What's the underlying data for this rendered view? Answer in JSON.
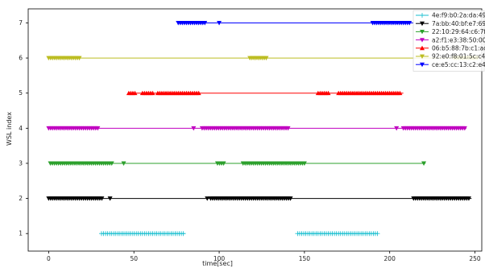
{
  "chart_data": {
    "type": "scatter",
    "xlabel": "time[sec]",
    "ylabel": "WSL index",
    "xlim": [
      -12,
      254
    ],
    "ylim": [
      0.5,
      7.4
    ],
    "xticks": [
      0,
      50,
      100,
      150,
      200,
      250
    ],
    "yticks": [
      1,
      2,
      3,
      4,
      5,
      6,
      7
    ],
    "grid": false,
    "legend_position": "top-right",
    "series": [
      {
        "name": "4e:f9:b0:2a:da:49",
        "color": "#17becf",
        "marker": "plus",
        "y": 1,
        "segments": [
          [
            31,
            80
          ],
          [
            146,
            193
          ]
        ],
        "dense": [
          [
            31,
            80
          ],
          [
            146,
            193
          ]
        ],
        "points": []
      },
      {
        "name": "7a:bb:40:bf:e7:69",
        "color": "#000000",
        "marker": "triangle-down",
        "y": 2,
        "segments": [
          [
            0,
            248
          ]
        ],
        "dense": [
          [
            0,
            32
          ],
          [
            95,
            142
          ],
          [
            214,
            247
          ]
        ],
        "points": [
          36,
          93
        ]
      },
      {
        "name": "22:10:29:64:c6:7f",
        "color": "#2ca02c",
        "marker": "triangle-down",
        "y": 3,
        "segments": [
          [
            1,
            221
          ]
        ],
        "dense": [
          [
            1,
            38
          ],
          [
            99,
            103
          ],
          [
            114,
            150
          ]
        ],
        "points": [
          44,
          220
        ]
      },
      {
        "name": "a2:f1:e3:38:50:00",
        "color": "#c000c0",
        "marker": "triangle-down",
        "y": 4,
        "segments": [
          [
            0,
            245
          ]
        ],
        "dense": [
          [
            0,
            29
          ],
          [
            90,
            141
          ],
          [
            208,
            244
          ]
        ],
        "points": [
          85,
          204
        ]
      },
      {
        "name": "06:b5:88:7b:c1:ad",
        "color": "#ff0000",
        "marker": "triangle-up",
        "y": 5,
        "segments": [
          [
            47,
            208
          ]
        ],
        "dense": [
          [
            47,
            51
          ],
          [
            55,
            61
          ],
          [
            64,
            88
          ],
          [
            158,
            165
          ],
          [
            170,
            206
          ]
        ],
        "points": []
      },
      {
        "name": "92:e0:f8:01:5c:c4",
        "color": "#bcbd22",
        "marker": "triangle-down",
        "y": 6,
        "segments": [
          [
            0,
            254
          ]
        ],
        "dense": [
          [
            0,
            18
          ],
          [
            118,
            128
          ],
          [
            238,
            252
          ]
        ],
        "points": []
      },
      {
        "name": "ce:e5:cc:13:c2:e4",
        "color": "#0000ff",
        "marker": "triangle-down",
        "y": 7,
        "segments": [
          [
            76,
            214
          ]
        ],
        "dense": [
          [
            76,
            92
          ],
          [
            190,
            212
          ]
        ],
        "points": [
          100
        ]
      }
    ]
  }
}
